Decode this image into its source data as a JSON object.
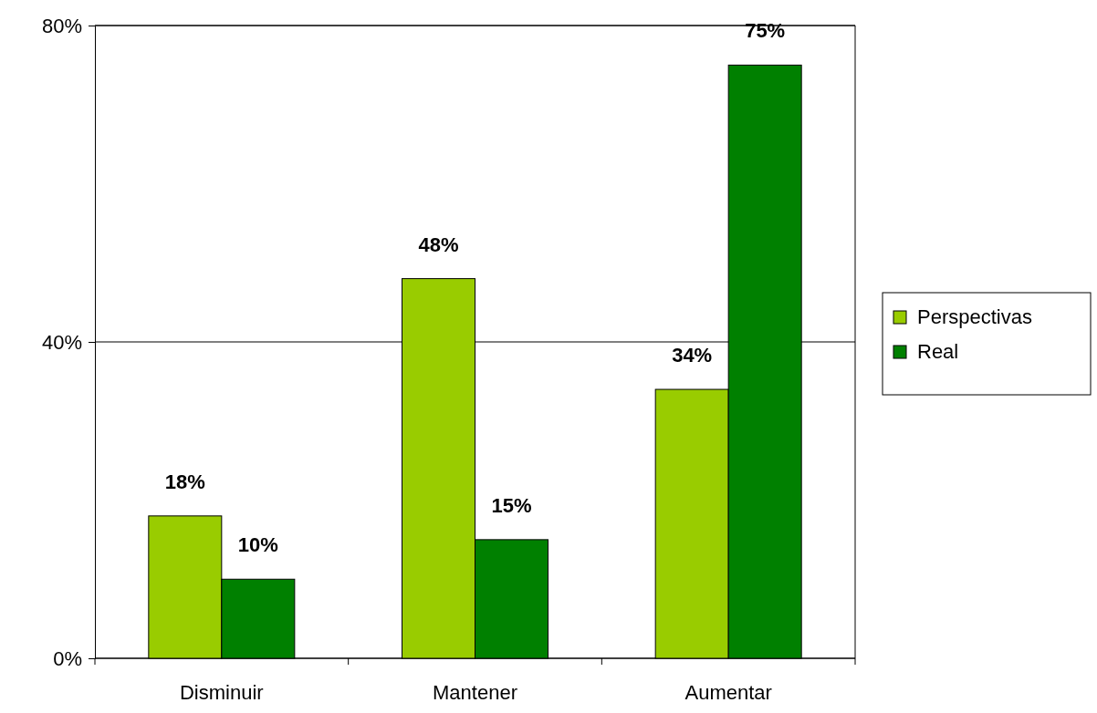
{
  "chart_data": {
    "type": "bar",
    "categories": [
      "Disminuir",
      "Mantener",
      "Aumentar"
    ],
    "series": [
      {
        "name": "Perspectivas",
        "color": "#99cc00",
        "values": [
          18,
          48,
          34
        ],
        "value_labels": [
          "18%",
          "48%",
          "34%"
        ]
      },
      {
        "name": "Real",
        "color": "#008000",
        "values": [
          10,
          15,
          75
        ],
        "value_labels": [
          "10%",
          "15%",
          "75%"
        ]
      }
    ],
    "ylim": [
      0,
      80
    ],
    "yticks": [
      {
        "value": 0,
        "label": "0%"
      },
      {
        "value": 40,
        "label": "40%"
      },
      {
        "value": 80,
        "label": "80%"
      }
    ],
    "grid": "y",
    "legend": "right"
  }
}
